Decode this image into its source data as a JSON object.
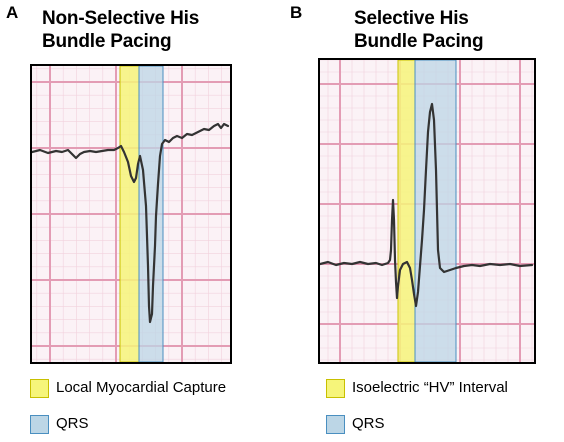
{
  "colors": {
    "yellow_band": "#f6f57a",
    "blue_band": "#bcd6e6",
    "yellow_border": "#c8c000",
    "blue_border": "#4a8fc0",
    "grid_major": "#e39cb4",
    "grid_minor": "#f2d1dd",
    "trace": "#333333"
  },
  "panels": [
    {
      "letter": "A",
      "title_line1": "Non-Selective His",
      "title_line2": "Bundle Pacing",
      "legend": [
        {
          "label": "Local Myocardial Capture",
          "swatch": "yellow"
        },
        {
          "label": "QRS",
          "swatch": "blue"
        }
      ]
    },
    {
      "letter": "B",
      "title_line1": "Selective His",
      "title_line2": "Bundle Pacing",
      "legend": [
        {
          "label": "Isoelectric “HV” Interval",
          "swatch": "yellow"
        },
        {
          "label": "QRS",
          "swatch": "blue"
        }
      ]
    }
  ]
}
